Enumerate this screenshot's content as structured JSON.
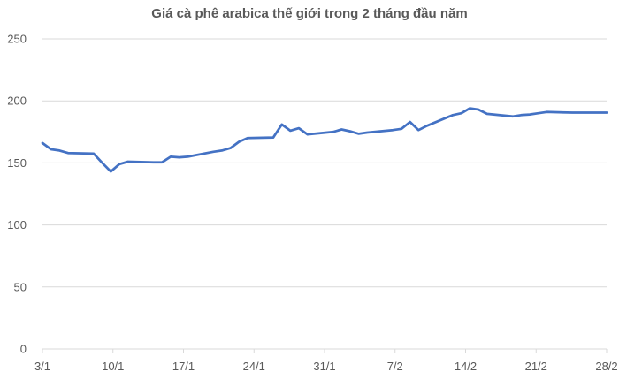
{
  "chart_data": {
    "type": "line",
    "title": "Giá cà phê arabica thế giới trong 2 tháng đầu năm",
    "xlabel": "",
    "ylabel": "",
    "ylim": [
      0,
      250
    ],
    "y_ticks": [
      0,
      50,
      100,
      150,
      200,
      250
    ],
    "x_tick_labels": [
      "3/1",
      "10/1",
      "17/1",
      "24/1",
      "31/1",
      "7/2",
      "14/2",
      "21/2",
      "28/2"
    ],
    "grid": true,
    "legend": "none",
    "series": [
      {
        "color": "#4472C4",
        "x": [
          0,
          1,
          2,
          3,
          6,
          7,
          8,
          9,
          10,
          13,
          14,
          15,
          16,
          17,
          20,
          21,
          22,
          23,
          24,
          27,
          28,
          29,
          30,
          31,
          34,
          35,
          36,
          37,
          38,
          41,
          42,
          43,
          44,
          45,
          48,
          49,
          50,
          51,
          52,
          55,
          56,
          57,
          58,
          59,
          62,
          63,
          64,
          65,
          66
        ],
        "values": [
          166,
          161,
          160,
          158,
          157.5,
          150,
          143,
          149,
          151,
          150.5,
          150.5,
          155,
          154.5,
          155,
          159,
          160,
          162,
          167,
          170,
          170.5,
          181,
          176,
          178,
          173,
          175,
          177,
          175.5,
          173.5,
          174.5,
          176.5,
          177.5,
          183,
          176.5,
          180,
          188.5,
          190,
          194,
          193,
          189.5,
          187.5,
          188.5,
          189,
          190,
          191,
          190.5,
          190.5,
          190.5,
          190.5,
          190.5
        ]
      }
    ]
  }
}
